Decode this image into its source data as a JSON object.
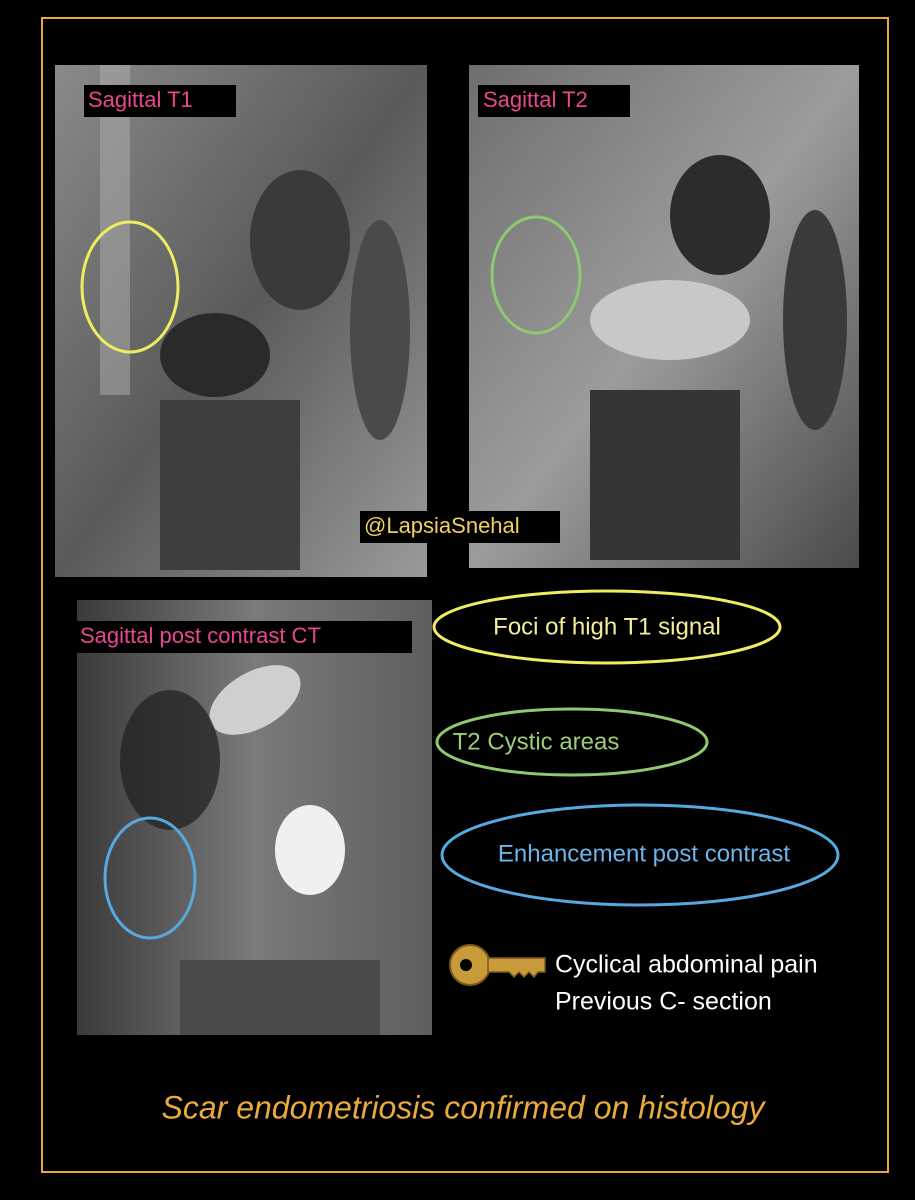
{
  "panels": [
    {
      "label": "Sagittal T1"
    },
    {
      "label": "Sagittal T2"
    },
    {
      "label": "Sagittal post contrast CT"
    }
  ],
  "watermark": "@LapsiaSnehal",
  "legend": [
    {
      "text": "Foci of high T1 signal"
    },
    {
      "text": "T2 Cystic areas"
    },
    {
      "text": "Enhancement post contrast"
    }
  ],
  "key_points": [
    "Cyclical abdominal pain",
    "Previous C- section"
  ],
  "conclusion": "Scar endometriosis confirmed on histology"
}
